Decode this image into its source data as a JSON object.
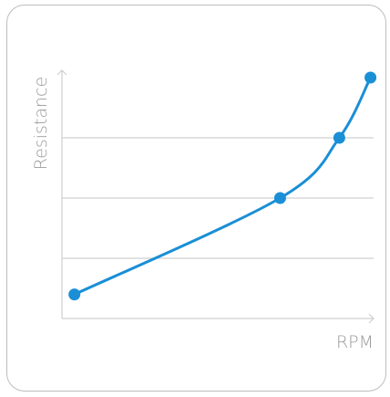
{
  "chart_data": {
    "type": "line",
    "title": "",
    "xlabel": "RPM",
    "ylabel": "Resistance",
    "x": [
      0.04,
      0.7,
      0.89,
      0.99
    ],
    "series": [
      {
        "values": [
          0.1,
          0.5,
          0.75,
          1.0
        ]
      }
    ],
    "xlim": [
      0,
      1
    ],
    "ylim": [
      0,
      1
    ],
    "grid": true,
    "ticks_shown": false,
    "colors": {
      "line": "#1a8fd6",
      "grid": "#d0d0d0",
      "axis": "#cfcfcf",
      "label": "#9a9a9a"
    }
  }
}
